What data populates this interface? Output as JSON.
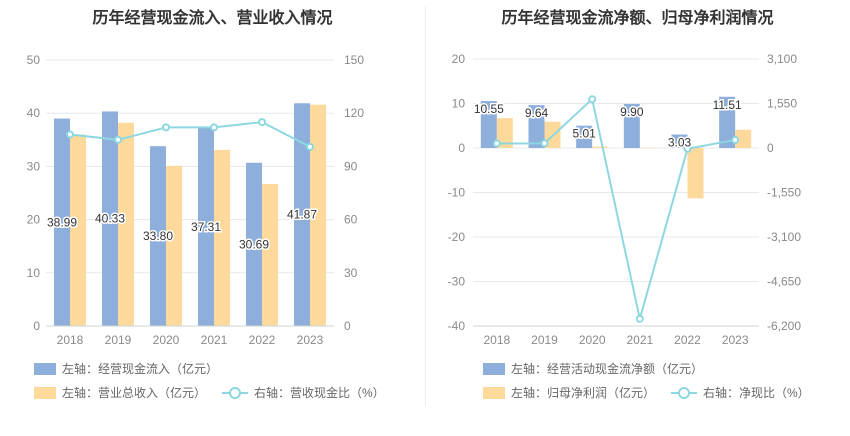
{
  "charts": [
    {
      "title": "历年经营现金流入、营业收入情况",
      "legend": {
        "bar1": "左轴：经营现金流入（亿元）",
        "bar2": "左轴：营业总收入（亿元）",
        "line": "右轴：营收现金比（%）"
      }
    },
    {
      "title": "历年经营现金流净额、归母净利润情况",
      "legend": {
        "bar1": "左轴：经营活动现金流净额（亿元）",
        "bar2": "左轴：归母净利润（亿元）",
        "line": "右轴：净现比（%）"
      }
    }
  ],
  "colors": {
    "bar1": "#8eaedc",
    "bar2": "#fdd99c",
    "line": "#8dd8e0",
    "grid": "#e6e8ee",
    "axis_text": "#8a8a8a"
  },
  "chart_data": [
    {
      "type": "bar",
      "title": "历年经营现金流入、营业收入情况",
      "categories": [
        "2018",
        "2019",
        "2020",
        "2021",
        "2022",
        "2023"
      ],
      "left_axis": {
        "ylim": [
          0,
          50
        ],
        "ticks": [
          "0",
          "10",
          "20",
          "30",
          "40",
          "50"
        ]
      },
      "right_axis": {
        "ylim": [
          0,
          150
        ],
        "ticks": [
          "0",
          "30",
          "60",
          "90",
          "120",
          "150"
        ]
      },
      "series": [
        {
          "name": "左轴：经营现金流入（亿元）",
          "axis": "left",
          "kind": "bar",
          "values": [
            38.99,
            40.33,
            33.8,
            37.31,
            30.69,
            41.87
          ],
          "labels": [
            "38.99",
            "40.33",
            "33.80",
            "37.31",
            "30.69",
            "41.87"
          ]
        },
        {
          "name": "左轴：营业总收入（亿元）",
          "axis": "left",
          "kind": "bar",
          "values": [
            36.0,
            38.2,
            30.1,
            33.1,
            26.7,
            41.6
          ]
        },
        {
          "name": "右轴：营收现金比（%）",
          "axis": "right",
          "kind": "line",
          "values": [
            108,
            105,
            112,
            112,
            115,
            101
          ]
        }
      ]
    },
    {
      "type": "bar",
      "title": "历年经营现金流净额、归母净利润情况",
      "categories": [
        "2018",
        "2019",
        "2020",
        "2021",
        "2022",
        "2023"
      ],
      "left_axis": {
        "ylim": [
          -40,
          20
        ],
        "ticks": [
          "-40",
          "-30",
          "-20",
          "-10",
          "0",
          "10",
          "20"
        ]
      },
      "right_axis": {
        "ylim": [
          -6200,
          3100
        ],
        "ticks": [
          "-6,200",
          "-4,650",
          "-3,100",
          "-1,550",
          "0",
          "1,550",
          "3,100"
        ]
      },
      "series": [
        {
          "name": "左轴：经营活动现金流净额（亿元）",
          "axis": "left",
          "kind": "bar",
          "values": [
            10.55,
            9.64,
            5.01,
            9.9,
            3.03,
            11.51
          ],
          "labels": [
            "10.55",
            "9.64",
            "5.01",
            "9.90",
            "3.03",
            "11.51"
          ]
        },
        {
          "name": "左轴：归母净利润（亿元）",
          "axis": "left",
          "kind": "bar",
          "values": [
            6.7,
            5.9,
            0.3,
            0.1,
            -11.3,
            4.1
          ]
        },
        {
          "name": "右轴：净现比（%）",
          "axis": "right",
          "kind": "line",
          "values": [
            157,
            163,
            1700,
            -5950,
            -27,
            281
          ]
        }
      ]
    }
  ]
}
